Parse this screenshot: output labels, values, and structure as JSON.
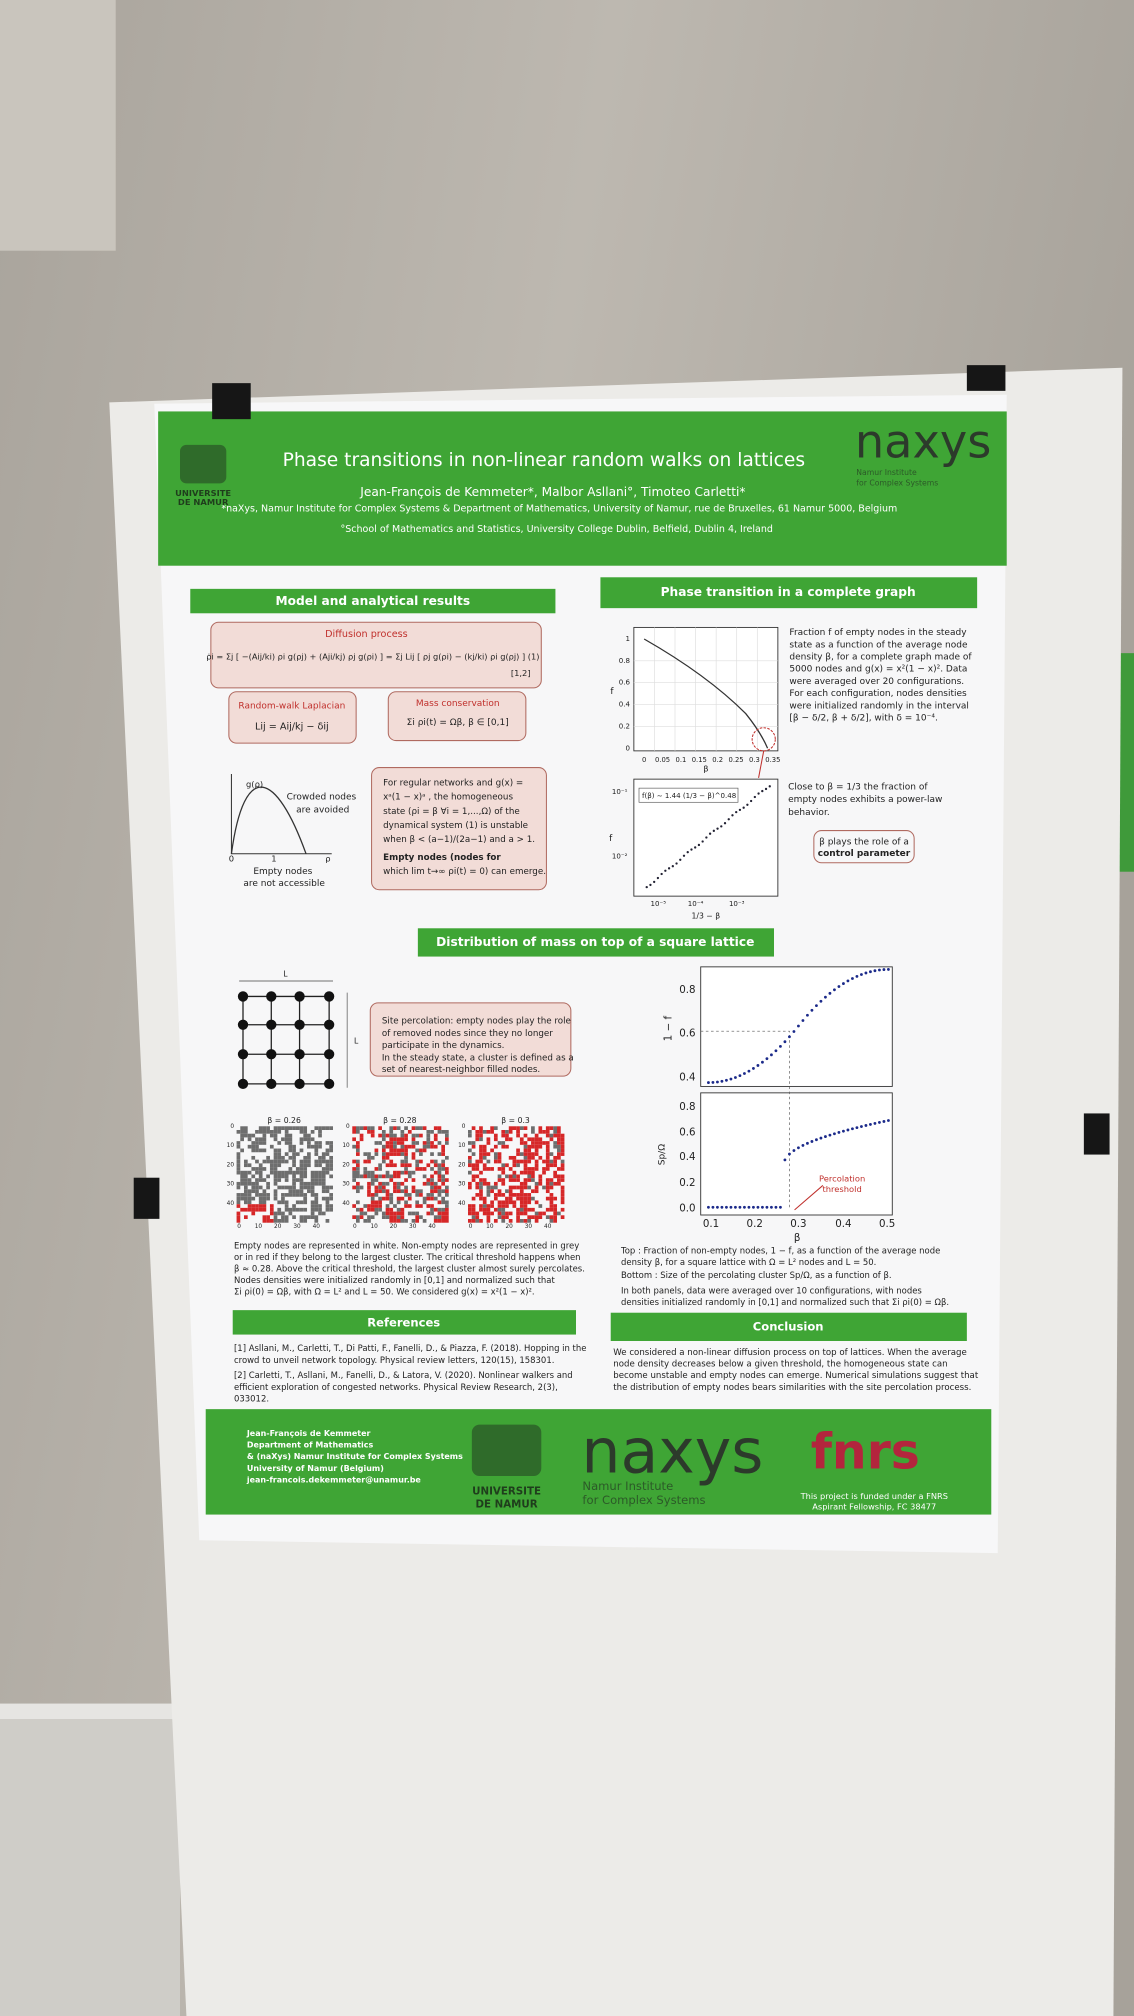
{
  "header": {
    "title": "Phase transitions in non-linear random walks on lattices",
    "authors": "Jean-François de Kemmeter*, Malbor Asllani°, Timoteo Carletti*",
    "affiliations": [
      "*naXys, Namur Institute for Complex Systems & Department of Mathematics, University of Namur, rue de Bruxelles, 61 Namur 5000, Belgium",
      "°School of Mathematics and Statistics, University College Dublin, Belfield, Dublin 4, Ireland"
    ],
    "logo": [
      "UNIVERSITE",
      "DE NAMUR"
    ],
    "lab": "naxys",
    "lab_subtitle": [
      "Namur Institute",
      "for Complex Systems"
    ]
  },
  "model": {
    "heading": "Model and analytical results",
    "diffusion": {
      "label": "Diffusion process",
      "equation": "ρ̇i = Σj [ −(Aij/ki) ρi g(ρj) + (Aji/kj) ρj g(ρi) ] = Σj Lij [ ρj g(ρi) − (kj/ki) ρi g(ρj) ]  (1)",
      "refs": "[1,2]"
    },
    "laplacian": {
      "label": "Random-walk Laplacian",
      "equation": "Lij = Aij/kj − δij"
    },
    "mass": {
      "label": "Mass conservation",
      "equation": "Σi ρi(t) = Ωβ, β ∈ [0,1]"
    },
    "sketch": {
      "axis_y": "g(ρ)",
      "ticks": [
        "0",
        "1"
      ],
      "axis_x": "ρ",
      "crowded": [
        "Crowded nodes",
        "are avoided"
      ],
      "empty": [
        "Empty nodes",
        "are not accessible"
      ]
    },
    "stability": [
      "For regular networks and g(x) =",
      "xᵃ(1 − x)ᵃ , the homogeneous",
      "state (ρi = β ∀i = 1,...,Ω) of the",
      "dynamical system (1) is unstable",
      "when β < (a−1)/(2a−1) and a > 1.",
      "Empty nodes (nodes for",
      "which lim t→∞ ρi(t) = 0) can emerge."
    ]
  },
  "phase": {
    "heading": "Phase transition in a complete graph",
    "plot_top": {
      "yticks": [
        "1",
        "0.8",
        "0.6",
        "0.4",
        "0.2",
        "0"
      ],
      "xticks": [
        "0",
        "0.05",
        "0.1",
        "0.15",
        "0.2",
        "0.25",
        "0.3",
        "0.35"
      ],
      "ylabel": "f",
      "xlabel": "β"
    },
    "text_top": [
      "Fraction f of empty nodes in the steady",
      "state as a function of the average node",
      "density β, for a complete graph made of",
      "5000 nodes and g(x) = x²(1 − x)². Data",
      "were averaged over 20 configurations.",
      "For each configuration, nodes densities",
      "were initialized randomly in the interval",
      "[β − δ/2, β + δ/2], with δ = 10⁻⁴."
    ],
    "plot_bottom": {
      "legend": "f(β) ∼ 1.44 (1/3 − β)^0.48",
      "yticks": [
        "10⁻¹",
        "10⁻²"
      ],
      "xticks": [
        "10⁻⁵",
        "10⁻⁴",
        "10⁻³"
      ],
      "ylabel": "f",
      "xlabel": "1/3 − β"
    },
    "text_bottom": [
      "Close to β = 1/3 the fraction of",
      "empty nodes exhibits a power-law",
      "behavior."
    ],
    "note": [
      "β plays the role of a",
      "control parameter"
    ]
  },
  "lattice": {
    "heading": "Distribution of mass on top of a square lattice",
    "L": "L",
    "percolation": [
      "Site percolation: empty nodes play the role",
      "of removed nodes since they no longer",
      "participate in the dynamics.",
      "In the steady state, a cluster is defined as a",
      "set of nearest-neighbor filled nodes."
    ],
    "panels": [
      "β = 0.26",
      "β = 0.28",
      "β = 0.3"
    ],
    "panel_ticks": [
      "0",
      "10",
      "20",
      "30",
      "40"
    ],
    "caption": [
      "Empty nodes are represented in white. Non-empty nodes are represented in grey",
      "or in red if they belong to the largest cluster. The critical threshold happens when",
      "β ≈ 0.28. Above the critical threshold, the largest cluster almost surely percolates.",
      "Nodes densities were initialized randomly in [0,1] and normalized such that",
      "Σi ρi(0) = Ωβ, with Ω = L² and L = 50. We considered g(x) = x²(1 − x)²."
    ],
    "plot": {
      "top_yticks": [
        "0.8",
        "0.6",
        "0.4"
      ],
      "bottom_yticks": [
        "0.8",
        "0.6",
        "0.4",
        "0.2",
        "0.0"
      ],
      "xticks": [
        "0.1",
        "0.2",
        "0.3",
        "0.4",
        "0.5"
      ],
      "xlabel": "β",
      "top_ylabel": "1 − f",
      "bottom_ylabel": "Sp/Ω",
      "annotation": [
        "Percolation",
        "threshold"
      ]
    },
    "plot_caption": [
      "Top : Fraction of non-empty nodes, 1 − f, as a function of the average node",
      "density β, for a square lattice with Ω = L² nodes and L = 50.",
      "Bottom : Size of the percolating cluster Sp/Ω, as a function of β.",
      "In both panels, data were averaged over 10 configurations, with nodes",
      "densities initialized randomly in [0,1] and normalized such that Σi ρi(0) = Ωβ."
    ]
  },
  "references": {
    "heading": "References",
    "items": [
      "[1] Asllani, M., Carletti, T., Di Patti, F., Fanelli, D., & Piazza, F. (2018). Hopping in the",
      "crowd to unveil network topology. Physical review letters, 120(15), 158301.",
      "[2] Carletti, T., Asllani, M., Fanelli, D., & Latora, V. (2020). Nonlinear walkers and",
      "efficient exploration of congested networks. Physical Review Research, 2(3),",
      "033012."
    ]
  },
  "conclusion": {
    "heading": "Conclusion",
    "lines": [
      "We considered a non-linear diffusion process on top of lattices. When the average",
      "node density decreases below a given threshold, the homogeneous state can",
      "become unstable and empty nodes can emerge. Numerical simulations suggest that",
      "the distribution of empty nodes bears similarities with the site percolation process."
    ]
  },
  "footer": {
    "contact": [
      "Jean-François de Kemmeter",
      "Department of Mathematics",
      "& (naXys) Namur Institute for Complex Systems",
      "University of Namur (Belgium)",
      "jean-francois.dekemmeter@unamur.be"
    ],
    "logo": [
      "UNIVERSITE",
      "DE NAMUR"
    ],
    "lab": "naxys",
    "lab_subtitle": [
      "Namur Institute",
      "for Complex Systems"
    ],
    "funder": "fnrs",
    "funding": [
      "This project is funded under a FNRS",
      "Aspirant Fellowship, FC 38477"
    ]
  }
}
